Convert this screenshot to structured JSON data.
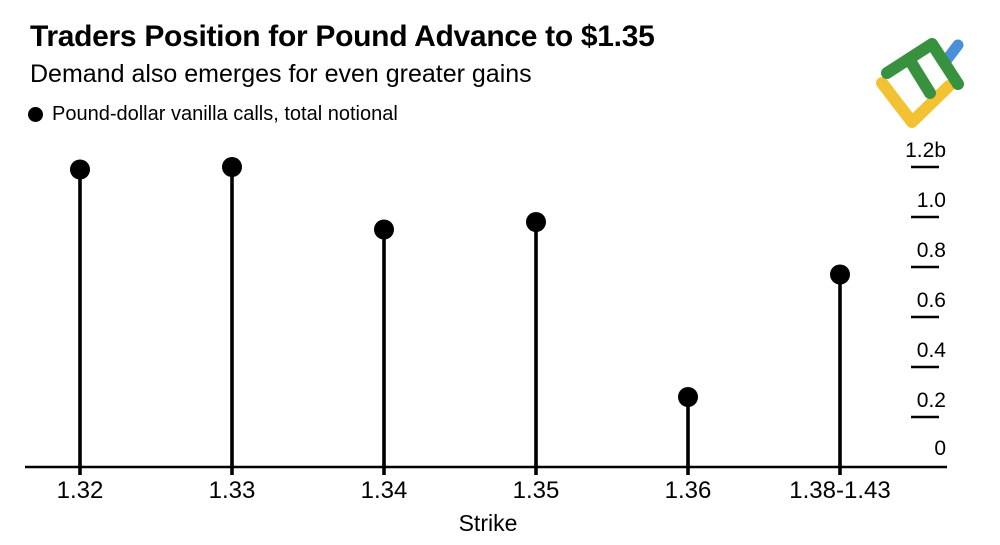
{
  "header": {
    "title": "Traders Position for Pound Advance to $1.35",
    "subtitle": "Demand also emerges for even greater gains"
  },
  "legend": {
    "label": "Pound-dollar vanilla calls, total notional"
  },
  "logo": {
    "name": "litefinance-logo",
    "colors": {
      "green": "#38913F",
      "blue": "#4A8FD8",
      "yellow": "#F2C233"
    }
  },
  "colors": {
    "ink": "#000000",
    "background": "#ffffff"
  },
  "chart_data": {
    "type": "bar",
    "style": "lollipop-stem",
    "title": "Traders Position for Pound Advance to $1.35",
    "subtitle": "Demand also emerges for even greater gains",
    "series_name": "Pound-dollar vanilla calls, total notional",
    "categories": [
      "1.32",
      "1.33",
      "1.34",
      "1.35",
      "1.36",
      "1.38-1.43"
    ],
    "values": [
      1.19,
      1.2,
      0.95,
      0.98,
      0.28,
      0.77
    ],
    "value_unit": "billions USD notional",
    "xlabel": "Strike",
    "ylabel": "",
    "ylim": [
      0,
      1.3
    ],
    "y_axis_side": "right",
    "grid": false,
    "legend_position": "top-left",
    "marker_color": "#000000",
    "y_ticks": [
      {
        "value": 0,
        "label": "0"
      },
      {
        "value": 0.2,
        "label": "0.2"
      },
      {
        "value": 0.4,
        "label": "0.4"
      },
      {
        "value": 0.6,
        "label": "0.6"
      },
      {
        "value": 0.8,
        "label": "0.8"
      },
      {
        "value": 1.0,
        "label": "1.0"
      },
      {
        "value": 1.2,
        "label": "1.2b"
      }
    ]
  }
}
